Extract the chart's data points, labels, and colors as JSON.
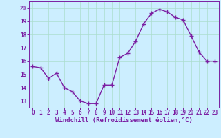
{
  "x": [
    0,
    1,
    2,
    3,
    4,
    5,
    6,
    7,
    8,
    9,
    10,
    11,
    12,
    13,
    14,
    15,
    16,
    17,
    18,
    19,
    20,
    21,
    22,
    23
  ],
  "y": [
    15.6,
    15.5,
    14.7,
    15.1,
    14.0,
    13.7,
    13.0,
    12.8,
    12.8,
    14.2,
    14.2,
    16.3,
    16.6,
    17.5,
    18.8,
    19.6,
    19.9,
    19.7,
    19.3,
    19.1,
    17.9,
    16.7,
    16.0,
    16.0
  ],
  "line_color": "#7B1FA2",
  "marker": "+",
  "marker_size": 4,
  "marker_linewidth": 1.0,
  "line_width": 1.0,
  "bg_color": "#cceeff",
  "grid_color": "#aaddcc",
  "xlabel": "Windchill (Refroidissement éolien,°C)",
  "xlabel_fontsize": 6.5,
  "xlabel_color": "#7B1FA2",
  "tick_color": "#7B1FA2",
  "ylim": [
    12.5,
    20.5
  ],
  "yticks": [
    13,
    14,
    15,
    16,
    17,
    18,
    19,
    20
  ],
  "xticks": [
    0,
    1,
    2,
    3,
    4,
    5,
    6,
    7,
    8,
    9,
    10,
    11,
    12,
    13,
    14,
    15,
    16,
    17,
    18,
    19,
    20,
    21,
    22,
    23
  ],
  "tick_fontsize": 5.5,
  "spine_color": "#7B1FA2"
}
